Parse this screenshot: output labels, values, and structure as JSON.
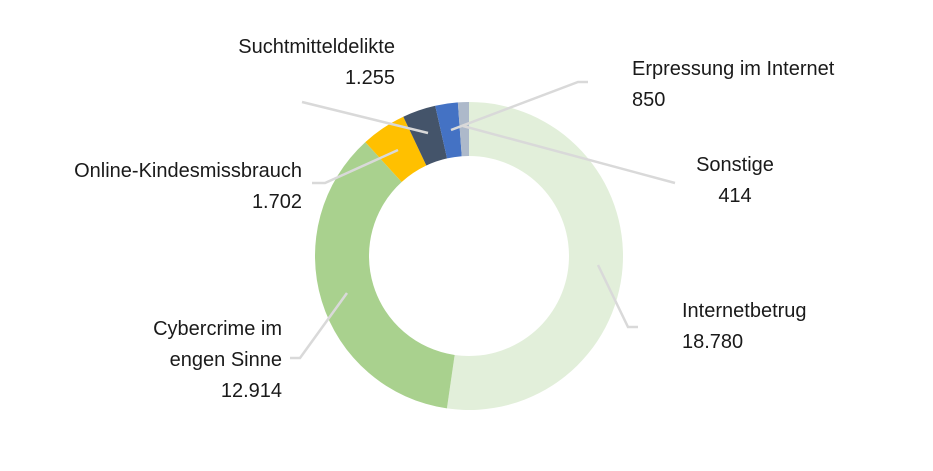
{
  "chart_data": {
    "type": "pie",
    "donut": true,
    "title": "",
    "slices": [
      {
        "label": "Internetbetrug",
        "value": 18780,
        "value_label": "18.780",
        "color": "#e2efda"
      },
      {
        "label": "Cybercrime im engen Sinne",
        "label_lines": [
          "Cybercrime im",
          "engen Sinne"
        ],
        "value": 12914,
        "value_label": "12.914",
        "color": "#a9d18e"
      },
      {
        "label": "Online-Kindesmissbrauch",
        "value": 1702,
        "value_label": "1.702",
        "color": "#ffc000"
      },
      {
        "label": "Suchtmitteldelikte",
        "value": 1255,
        "value_label": "1.255",
        "color": "#44546a"
      },
      {
        "label": "Erpressung im Internet",
        "value": 850,
        "value_label": "850",
        "color": "#4472c4"
      },
      {
        "label": "Sonstige",
        "value": 414,
        "value_label": "414",
        "color": "#adb9ca"
      }
    ],
    "start": "top",
    "direction": "clockwise",
    "leader_line_color": "#d9d9d9"
  }
}
